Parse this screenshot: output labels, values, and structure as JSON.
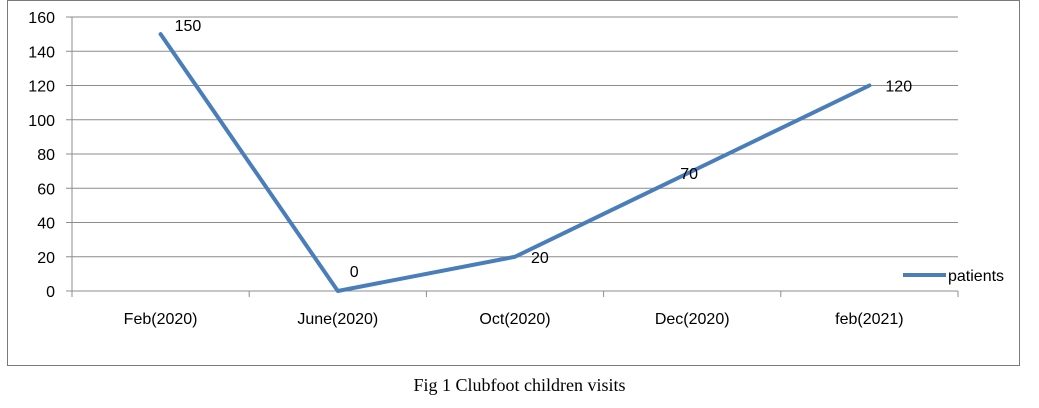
{
  "chart_data": {
    "type": "line",
    "categories": [
      "Feb(2020)",
      "June(2020)",
      "Oct(2020)",
      "Dec(2020)",
      "feb(2021)"
    ],
    "series": [
      {
        "name": "patients",
        "values": [
          150,
          0,
          20,
          70,
          120
        ],
        "color": "#4a7ebb"
      }
    ],
    "data_labels": [
      "150",
      "0",
      "20",
      "70",
      "120"
    ],
    "ylim": [
      0,
      160
    ],
    "yticks": [
      "0",
      "20",
      "40",
      "60",
      "80",
      "100",
      "120",
      "140",
      "160"
    ],
    "grid": true,
    "legend_position": "right"
  },
  "caption": "Fig 1 Clubfoot children visits"
}
